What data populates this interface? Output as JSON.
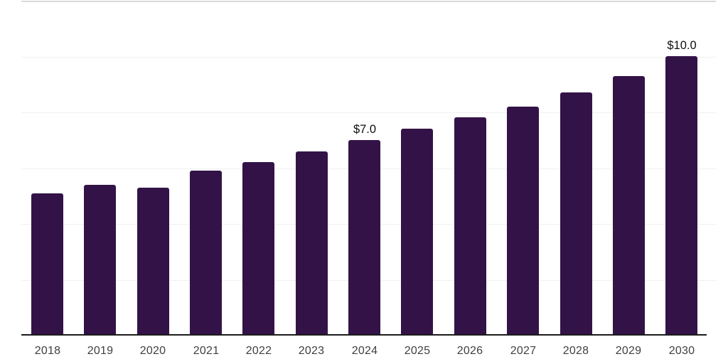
{
  "chart_data": {
    "type": "bar",
    "categories": [
      "2018",
      "2019",
      "2020",
      "2021",
      "2022",
      "2023",
      "2024",
      "2025",
      "2026",
      "2027",
      "2028",
      "2029",
      "2030"
    ],
    "values": [
      5.1,
      5.4,
      5.3,
      5.9,
      6.2,
      6.6,
      7.0,
      7.4,
      7.8,
      8.2,
      8.7,
      9.3,
      10.0
    ],
    "value_labels": [
      {
        "index": 6,
        "text": "$7.0"
      },
      {
        "index": 12,
        "text": "$10.0"
      }
    ],
    "title": "",
    "xlabel": "",
    "ylabel": "",
    "ylim": [
      0,
      12
    ],
    "grid_step": 2,
    "grid": true,
    "legend": false,
    "colors": {
      "bar": "#331347",
      "axis_line": "#1c1c1c",
      "gridline": "#f0f0f0",
      "top_gridline": "#d9d9d9",
      "tick_label": "#404040",
      "value_label": "#0d0d0d",
      "background": "#ffffff"
    }
  }
}
